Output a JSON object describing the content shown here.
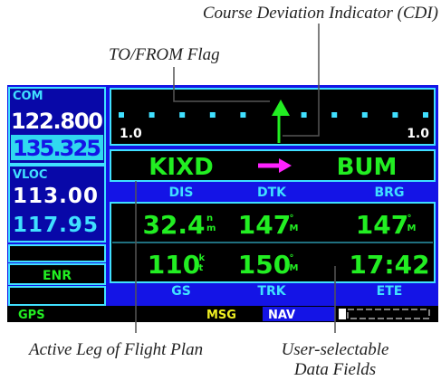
{
  "callouts": {
    "cdi": "Course Deviation Indicator (CDI)",
    "flag": "TO/FROM Flag",
    "leg": "Active Leg of Flight Plan",
    "fields": [
      "User-selectable",
      "Data Fields"
    ]
  },
  "com": {
    "label": "COM",
    "active": "122.800",
    "standby": "135.325"
  },
  "vloc": {
    "label": "VLOC",
    "active": "113.00",
    "standby": "117.95"
  },
  "mode": "ENR",
  "cdi_scale": [
    "1.0",
    "1.0"
  ],
  "leg": {
    "from": "KIXD",
    "to": "BUM"
  },
  "fields": [
    {
      "label": "DIS",
      "value": "32.4",
      "unit": [
        "n",
        "m"
      ]
    },
    {
      "label": "DTK",
      "value": "147",
      "unit": [
        "°",
        "M"
      ]
    },
    {
      "label": "BRG",
      "value": "147",
      "unit": [
        "°",
        "M"
      ]
    },
    {
      "label": "GS",
      "value": "110",
      "unit": [
        "k",
        "t"
      ]
    },
    {
      "label": "TRK",
      "value": "150",
      "unit": [
        "°",
        "M"
      ]
    },
    {
      "label": "ETE",
      "value": "17:42",
      "unit": []
    }
  ],
  "status": {
    "gps": "GPS",
    "msg": "MSG",
    "nav": "NAV"
  }
}
